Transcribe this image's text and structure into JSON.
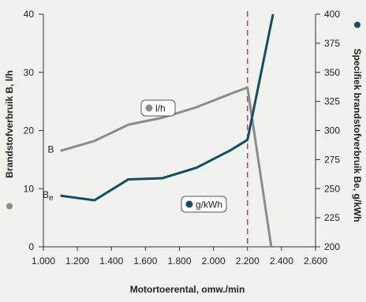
{
  "chart_data": {
    "type": "line",
    "xlabel": "Motortoerental, omw./min",
    "ylabel_left": "Brandstofverbruik B, l/h",
    "ylabel_right": "Specifiek brandstofverbruik Be, g/kWh",
    "x_ticks": [
      "1.000",
      "1.200",
      "1.400",
      "1.600",
      "1.800",
      "2.000",
      "2.200",
      "2.400",
      "2.600"
    ],
    "xlim": [
      1000,
      2600
    ],
    "ylim_left": [
      0,
      40
    ],
    "ylim_right": [
      200,
      400
    ],
    "y_left_ticks": [
      0,
      10,
      20,
      30,
      40
    ],
    "y_right_ticks": [
      200,
      225,
      250,
      275,
      300,
      325,
      350,
      375,
      400
    ],
    "reference_line": {
      "x": 2200,
      "color": "#d0338a",
      "style": "dashed"
    },
    "series": [
      {
        "label": "l/h",
        "axis": "left",
        "color": "#8c8c8c",
        "curve_label": "B",
        "x": [
          1100,
          1300,
          1500,
          1700,
          1900,
          2100,
          2200,
          2340
        ],
        "y": [
          16.5,
          18.2,
          21.0,
          22.2,
          24.0,
          26.3,
          27.4,
          0
        ]
      },
      {
        "label": "g/kWh",
        "axis": "right",
        "color": "#0b5263",
        "curve_label": "Be",
        "x": [
          1100,
          1300,
          1500,
          1700,
          1900,
          2100,
          2200,
          2350
        ],
        "y": [
          244,
          240,
          258,
          259,
          268,
          283,
          292,
          400
        ]
      }
    ]
  }
}
